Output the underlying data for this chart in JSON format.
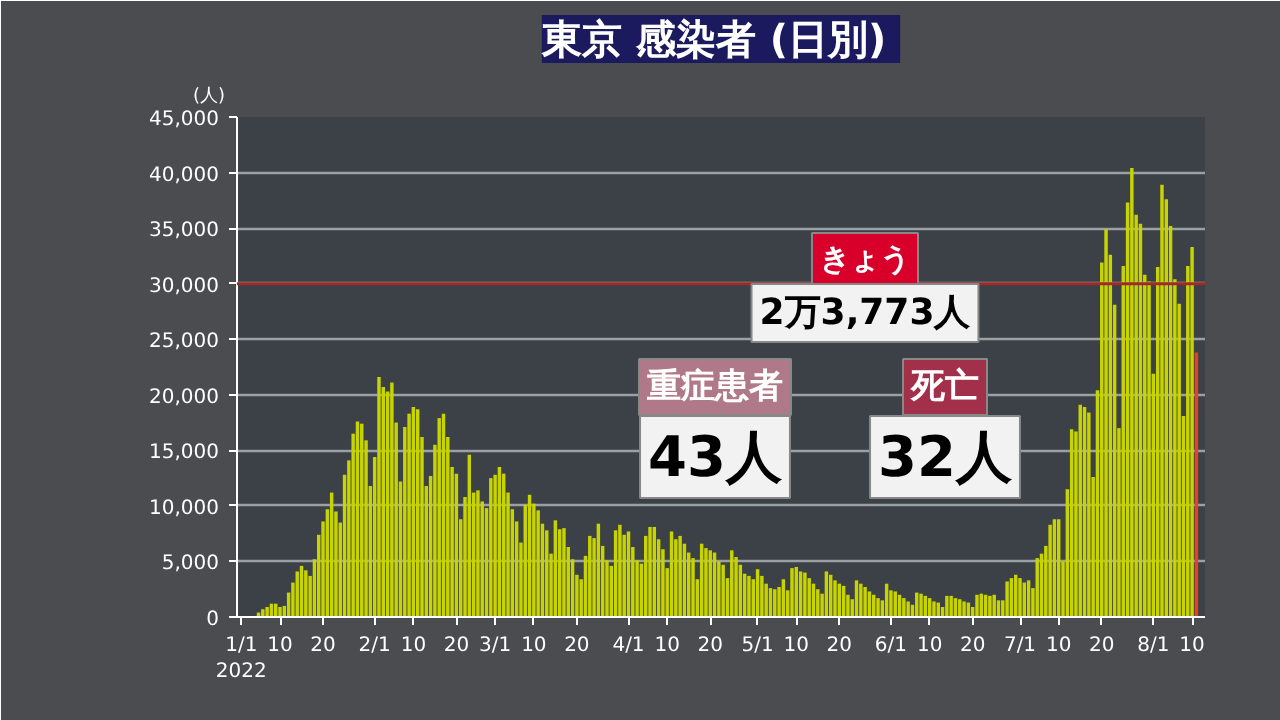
{
  "chart_data": {
    "type": "bar",
    "title": "東京 感染者",
    "subtitle": "(日別)",
    "ylabel": "(人)",
    "x": [
      "2022-01-05",
      "2022-01-06",
      "2022-01-07",
      "2022-01-08",
      "2022-01-09",
      "2022-01-10",
      "2022-01-11",
      "2022-01-12",
      "2022-01-13",
      "2022-01-14",
      "2022-01-15",
      "2022-01-16",
      "2022-01-17",
      "2022-01-18",
      "2022-01-19",
      "2022-01-20",
      "2022-01-21",
      "2022-01-22",
      "2022-01-23",
      "2022-01-24",
      "2022-01-25",
      "2022-01-26",
      "2022-01-27",
      "2022-01-28",
      "2022-01-29",
      "2022-01-30",
      "2022-01-31",
      "2022-02-01",
      "2022-02-02",
      "2022-02-03",
      "2022-02-04",
      "2022-02-05",
      "2022-02-06",
      "2022-02-07",
      "2022-02-08",
      "2022-02-09",
      "2022-02-10",
      "2022-02-11",
      "2022-02-12",
      "2022-02-13",
      "2022-02-14",
      "2022-02-15",
      "2022-02-16",
      "2022-02-17",
      "2022-02-18",
      "2022-02-19",
      "2022-02-20",
      "2022-02-21",
      "2022-02-22",
      "2022-02-23",
      "2022-02-24",
      "2022-02-25",
      "2022-02-26",
      "2022-02-27",
      "2022-02-28",
      "2022-03-01",
      "2022-03-02",
      "2022-03-03",
      "2022-03-04",
      "2022-03-05",
      "2022-03-06",
      "2022-03-07",
      "2022-03-08",
      "2022-03-09",
      "2022-03-10",
      "2022-03-11",
      "2022-03-12",
      "2022-03-13",
      "2022-03-14",
      "2022-03-15",
      "2022-03-16",
      "2022-03-17",
      "2022-03-18",
      "2022-03-19",
      "2022-03-20",
      "2022-03-21",
      "2022-03-22",
      "2022-03-23",
      "2022-03-24",
      "2022-03-25",
      "2022-03-26",
      "2022-03-27",
      "2022-03-28",
      "2022-03-29",
      "2022-03-30",
      "2022-03-31",
      "2022-04-01",
      "2022-04-02",
      "2022-04-03",
      "2022-04-04",
      "2022-04-05",
      "2022-04-06",
      "2022-04-07",
      "2022-04-08",
      "2022-04-09",
      "2022-04-10",
      "2022-04-11",
      "2022-04-12",
      "2022-04-13",
      "2022-04-14",
      "2022-04-15",
      "2022-04-16",
      "2022-04-17",
      "2022-04-18",
      "2022-04-19",
      "2022-04-20",
      "2022-04-21",
      "2022-04-22",
      "2022-04-23",
      "2022-04-24",
      "2022-04-25",
      "2022-04-26",
      "2022-04-27",
      "2022-04-28",
      "2022-04-29",
      "2022-04-30",
      "2022-05-01",
      "2022-05-02",
      "2022-05-03",
      "2022-05-04",
      "2022-05-05",
      "2022-05-06",
      "2022-05-07",
      "2022-05-08",
      "2022-05-09",
      "2022-05-10",
      "2022-05-11",
      "2022-05-12",
      "2022-05-13",
      "2022-05-14",
      "2022-05-15",
      "2022-05-16",
      "2022-05-17",
      "2022-05-18",
      "2022-05-19",
      "2022-05-20",
      "2022-05-21",
      "2022-05-22",
      "2022-05-23",
      "2022-05-24",
      "2022-05-25",
      "2022-05-26",
      "2022-05-27",
      "2022-05-28",
      "2022-05-29",
      "2022-05-30",
      "2022-05-31",
      "2022-06-01",
      "2022-06-02",
      "2022-06-03",
      "2022-06-04",
      "2022-06-05",
      "2022-06-06",
      "2022-06-07",
      "2022-06-08",
      "2022-06-09",
      "2022-06-10",
      "2022-06-11",
      "2022-06-12",
      "2022-06-13",
      "2022-06-14",
      "2022-06-15",
      "2022-06-16",
      "2022-06-17",
      "2022-06-18",
      "2022-06-19",
      "2022-06-20",
      "2022-06-21",
      "2022-06-22",
      "2022-06-23",
      "2022-06-24",
      "2022-06-25",
      "2022-06-26",
      "2022-06-27",
      "2022-06-28",
      "2022-06-29",
      "2022-06-30",
      "2022-07-01",
      "2022-07-02",
      "2022-07-03",
      "2022-07-04",
      "2022-07-05",
      "2022-07-06",
      "2022-07-07",
      "2022-07-08",
      "2022-07-09",
      "2022-07-10",
      "2022-07-11",
      "2022-07-12",
      "2022-07-13",
      "2022-07-14",
      "2022-07-15",
      "2022-07-16",
      "2022-07-17",
      "2022-07-18",
      "2022-07-19",
      "2022-07-20",
      "2022-07-21",
      "2022-07-22",
      "2022-07-23",
      "2022-07-24",
      "2022-07-25",
      "2022-07-26",
      "2022-07-27",
      "2022-07-28",
      "2022-07-29",
      "2022-07-30",
      "2022-07-31",
      "2022-08-01",
      "2022-08-02",
      "2022-08-03",
      "2022-08-04",
      "2022-08-05",
      "2022-08-06",
      "2022-08-07",
      "2022-08-08",
      "2022-08-09",
      "2022-08-10",
      "2022-08-11"
    ],
    "series": [
      {
        "color": "#c8d400",
        "values": [
          400,
          700,
          900,
          1200,
          1200,
          900,
          1000,
          2200,
          3100,
          4100,
          4600,
          4200,
          3700,
          5200,
          7400,
          8600,
          9700,
          11200,
          9500,
          8500,
          12800,
          14100,
          16500,
          17600,
          17400,
          15900,
          11800,
          14400,
          21600,
          20700,
          20300,
          21100,
          17500,
          12200,
          17100,
          18300,
          18900,
          18700,
          16200,
          11800,
          12700,
          15500,
          17900,
          18300,
          16200,
          13500,
          12900,
          8800,
          10800,
          14600,
          11200,
          11400,
          10400,
          9800,
          12500,
          12800,
          13500,
          12900,
          11200,
          9700,
          8600,
          6700,
          10100,
          11000,
          10200,
          9600,
          8400,
          7800,
          5700,
          8700,
          7900,
          8000,
          6300,
          5200,
          3800,
          3400,
          5500,
          7300,
          7100,
          8400,
          6400,
          5100,
          4600,
          7800,
          8300,
          7400,
          7700,
          6300,
          5100,
          4800,
          7300,
          8100,
          8100,
          7000,
          6100,
          4400,
          7700,
          7000,
          7300,
          6600,
          5800,
          5300,
          3400,
          6600,
          6200,
          6000,
          5800,
          5000,
          4700,
          3500,
          6000,
          5400,
          4700,
          3900,
          3700,
          3400,
          4300,
          3700,
          3000,
          2600,
          2500,
          2700,
          3400,
          2400,
          4400,
          4500,
          4100,
          4000,
          3500,
          3000,
          2500,
          2100,
          4100,
          3800,
          3300,
          3000,
          2800,
          2000,
          1600,
          3300,
          3000,
          2700,
          2300,
          2000,
          1700,
          1500,
          3000,
          2400,
          2300,
          2000,
          1700,
          1400,
          1100,
          2200,
          2100,
          1900,
          1700,
          1400,
          1300,
          900,
          1900,
          1900,
          1700,
          1600,
          1400,
          1300,
          900,
          2000,
          2100,
          2000,
          1900,
          2000,
          1500,
          1500,
          3200,
          3500,
          3800,
          3500,
          3100,
          3300,
          2600,
          5300,
          5700,
          6400,
          8300,
          8800,
          8800,
          5000,
          11500,
          16900,
          16700,
          19100,
          18900,
          18400,
          12600,
          20400,
          31900,
          34900,
          32600,
          28100,
          17000,
          31600,
          37300,
          40400,
          36200,
          35400,
          30800,
          30200,
          21900,
          31500,
          38900,
          37600,
          35200,
          30400,
          28200,
          18100,
          31600,
          33300,
          null
        ]
      },
      {
        "color": "#e8402a",
        "values": [
          null,
          null,
          null,
          null,
          null,
          null,
          null,
          null,
          null,
          null,
          null,
          null,
          null,
          null,
          null,
          null,
          null,
          null,
          null,
          null,
          null,
          null,
          null,
          null,
          null,
          null,
          null,
          null,
          null,
          null,
          null,
          null,
          null,
          null,
          null,
          null,
          null,
          null,
          null,
          null,
          null,
          null,
          null,
          null,
          null,
          null,
          null,
          null,
          null,
          null,
          null,
          null,
          null,
          null,
          null,
          null,
          null,
          null,
          null,
          null,
          null,
          null,
          null,
          null,
          null,
          null,
          null,
          null,
          null,
          null,
          null,
          null,
          null,
          null,
          null,
          null,
          null,
          null,
          null,
          null,
          null,
          null,
          null,
          null,
          null,
          null,
          null,
          null,
          null,
          null,
          null,
          null,
          null,
          null,
          null,
          null,
          null,
          null,
          null,
          null,
          null,
          null,
          null,
          null,
          null,
          null,
          null,
          null,
          null,
          null,
          null,
          null,
          null,
          null,
          null,
          null,
          null,
          null,
          null,
          null,
          null,
          null,
          null,
          null,
          null,
          null,
          null,
          null,
          null,
          null,
          null,
          null,
          null,
          null,
          null,
          null,
          null,
          null,
          null,
          null,
          null,
          null,
          null,
          null,
          null,
          null,
          null,
          null,
          null,
          null,
          null,
          null,
          null,
          null,
          null,
          null,
          null,
          null,
          null,
          null,
          null,
          null,
          null,
          null,
          null,
          null,
          null,
          null,
          null,
          null,
          null,
          null,
          null,
          null,
          null,
          null,
          null,
          null,
          null,
          null,
          null,
          null,
          null,
          null,
          null,
          null,
          null,
          null,
          null,
          null,
          null,
          null,
          null,
          null,
          null,
          null,
          null,
          null,
          null,
          null,
          null,
          null,
          null,
          null,
          null,
          null,
          null,
          null,
          null,
          null,
          null,
          null,
          null,
          null,
          null,
          null,
          null,
          null,
          23800
        ]
      }
    ],
    "xlim": [
      "2021-12-31",
      "2022-08-13"
    ],
    "xticks": [
      {
        "value": "2022-01-01",
        "label": "1/1\n2022"
      },
      {
        "value": "2022-01-10",
        "label": "10"
      },
      {
        "value": "2022-01-20",
        "label": "20"
      },
      {
        "value": "2022-02-01",
        "label": "2/1"
      },
      {
        "value": "2022-02-10",
        "label": "10"
      },
      {
        "value": "2022-02-20",
        "label": "20"
      },
      {
        "value": "2022-03-01",
        "label": "3/1"
      },
      {
        "value": "2022-03-10",
        "label": "10"
      },
      {
        "value": "2022-03-20",
        "label": "20"
      },
      {
        "value": "2022-04-01",
        "label": "4/1"
      },
      {
        "value": "2022-04-10",
        "label": "10"
      },
      {
        "value": "2022-04-20",
        "label": "20"
      },
      {
        "value": "2022-05-01",
        "label": "5/1"
      },
      {
        "value": "2022-05-10",
        "label": "10"
      },
      {
        "value": "2022-05-20",
        "label": "20"
      },
      {
        "value": "2022-06-01",
        "label": "6/1"
      },
      {
        "value": "2022-06-10",
        "label": "10"
      },
      {
        "value": "2022-06-20",
        "label": "20"
      },
      {
        "value": "2022-07-01",
        "label": "7/1"
      },
      {
        "value": "2022-07-10",
        "label": "10"
      },
      {
        "value": "2022-07-20",
        "label": "20"
      },
      {
        "value": "2022-08-01",
        "label": "8/1"
      },
      {
        "value": "2022-08-10",
        "label": "10"
      }
    ],
    "ylim": [
      0,
      45000
    ],
    "yticks": [
      0,
      {
        "value": 5000,
        "label": "5,000"
      },
      {
        "value": 10000,
        "label": "10,000"
      },
      {
        "value": 15000,
        "label": "15,000"
      },
      {
        "value": 20000,
        "label": "20,000"
      },
      {
        "value": 25000,
        "label": "25,000"
      },
      {
        "value": 30000,
        "label": "30,000"
      },
      {
        "value": 35000,
        "label": "35,000"
      },
      {
        "value": 40000,
        "label": "40,000"
      },
      {
        "value": 45000,
        "label": "45,000"
      }
    ],
    "grid": "y",
    "ref_lines": [
      {
        "axis": "y",
        "value": 30000,
        "color": "#a02a2a"
      }
    ],
    "annotations": [
      "きょう",
      "2万3,773人",
      "重症患者",
      "43人",
      "死亡",
      "32人"
    ]
  }
}
